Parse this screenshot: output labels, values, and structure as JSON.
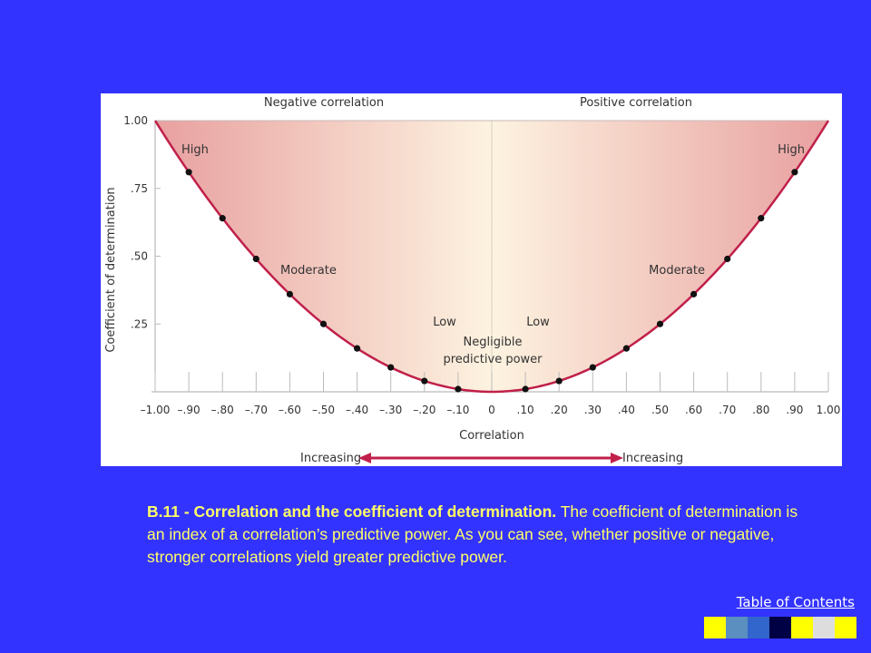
{
  "chart_data": {
    "type": "line",
    "title": "",
    "xlabel": "Correlation",
    "ylabel": "Coefficient of determination",
    "xlim": [
      -1.0,
      1.0
    ],
    "ylim": [
      0,
      1.0
    ],
    "x_ticks": [
      -1.0,
      -0.9,
      -0.8,
      -0.7,
      -0.6,
      -0.5,
      -0.4,
      -0.3,
      -0.2,
      -0.1,
      0,
      0.1,
      0.2,
      0.3,
      0.4,
      0.5,
      0.6,
      0.7,
      0.8,
      0.9,
      1.0
    ],
    "x_tick_labels": [
      "–1.00",
      "–.90",
      "–.80",
      "–.70",
      "–.60",
      "–.50",
      "–.40",
      "–.30",
      "–.20",
      "–.10",
      "0",
      ".10",
      ".20",
      ".30",
      ".40",
      ".50",
      ".60",
      ".70",
      ".80",
      ".90",
      "1.00"
    ],
    "y_ticks": [
      0.25,
      0.5,
      0.75,
      1.0
    ],
    "y_tick_labels": [
      ".25",
      ".50",
      ".75",
      "1.00"
    ],
    "series": [
      {
        "x": [
          -0.9,
          -0.8,
          -0.7,
          -0.6,
          -0.5,
          -0.4,
          -0.3,
          -0.2,
          -0.1,
          0.1,
          0.2,
          0.3,
          0.4,
          0.5,
          0.6,
          0.7,
          0.8,
          0.9
        ],
        "values": [
          0.81,
          0.64,
          0.49,
          0.36,
          0.25,
          0.16,
          0.09,
          0.04,
          0.01,
          0.01,
          0.04,
          0.09,
          0.16,
          0.25,
          0.36,
          0.49,
          0.64,
          0.81
        ]
      }
    ],
    "region_labels": {
      "negative": "Negative correlation",
      "positive": "Positive correlation"
    },
    "annotations": {
      "high_left": "High",
      "high_right": "High",
      "moderate_left": "Moderate",
      "moderate_right": "Moderate",
      "low_left": "Low",
      "low_right": "Low",
      "negligible_line1": "Negligible",
      "negligible_line2": "predictive power",
      "increasing_left": "Increasing",
      "increasing_right": "Increasing"
    },
    "colors": {
      "curve": "#c0204a",
      "fill_edge": "#e8a0a0",
      "fill_center": "#fdf3e0",
      "points": "#111111"
    },
    "grid": false
  },
  "caption": {
    "bold": "B.11 - Correlation and the coefficient of determination.",
    "text": " The coefficient of determination is an index of a correlation’s predictive power. As you can see, whether positive or negative, stronger correlations yield greater predictive power."
  },
  "nav": {
    "toc_label": "Table of Contents",
    "swatches": [
      "#ffff00",
      "#5b8fbf",
      "#3366cc",
      "#000044",
      "#ffff00",
      "#dddddd",
      "#ffff00"
    ]
  }
}
